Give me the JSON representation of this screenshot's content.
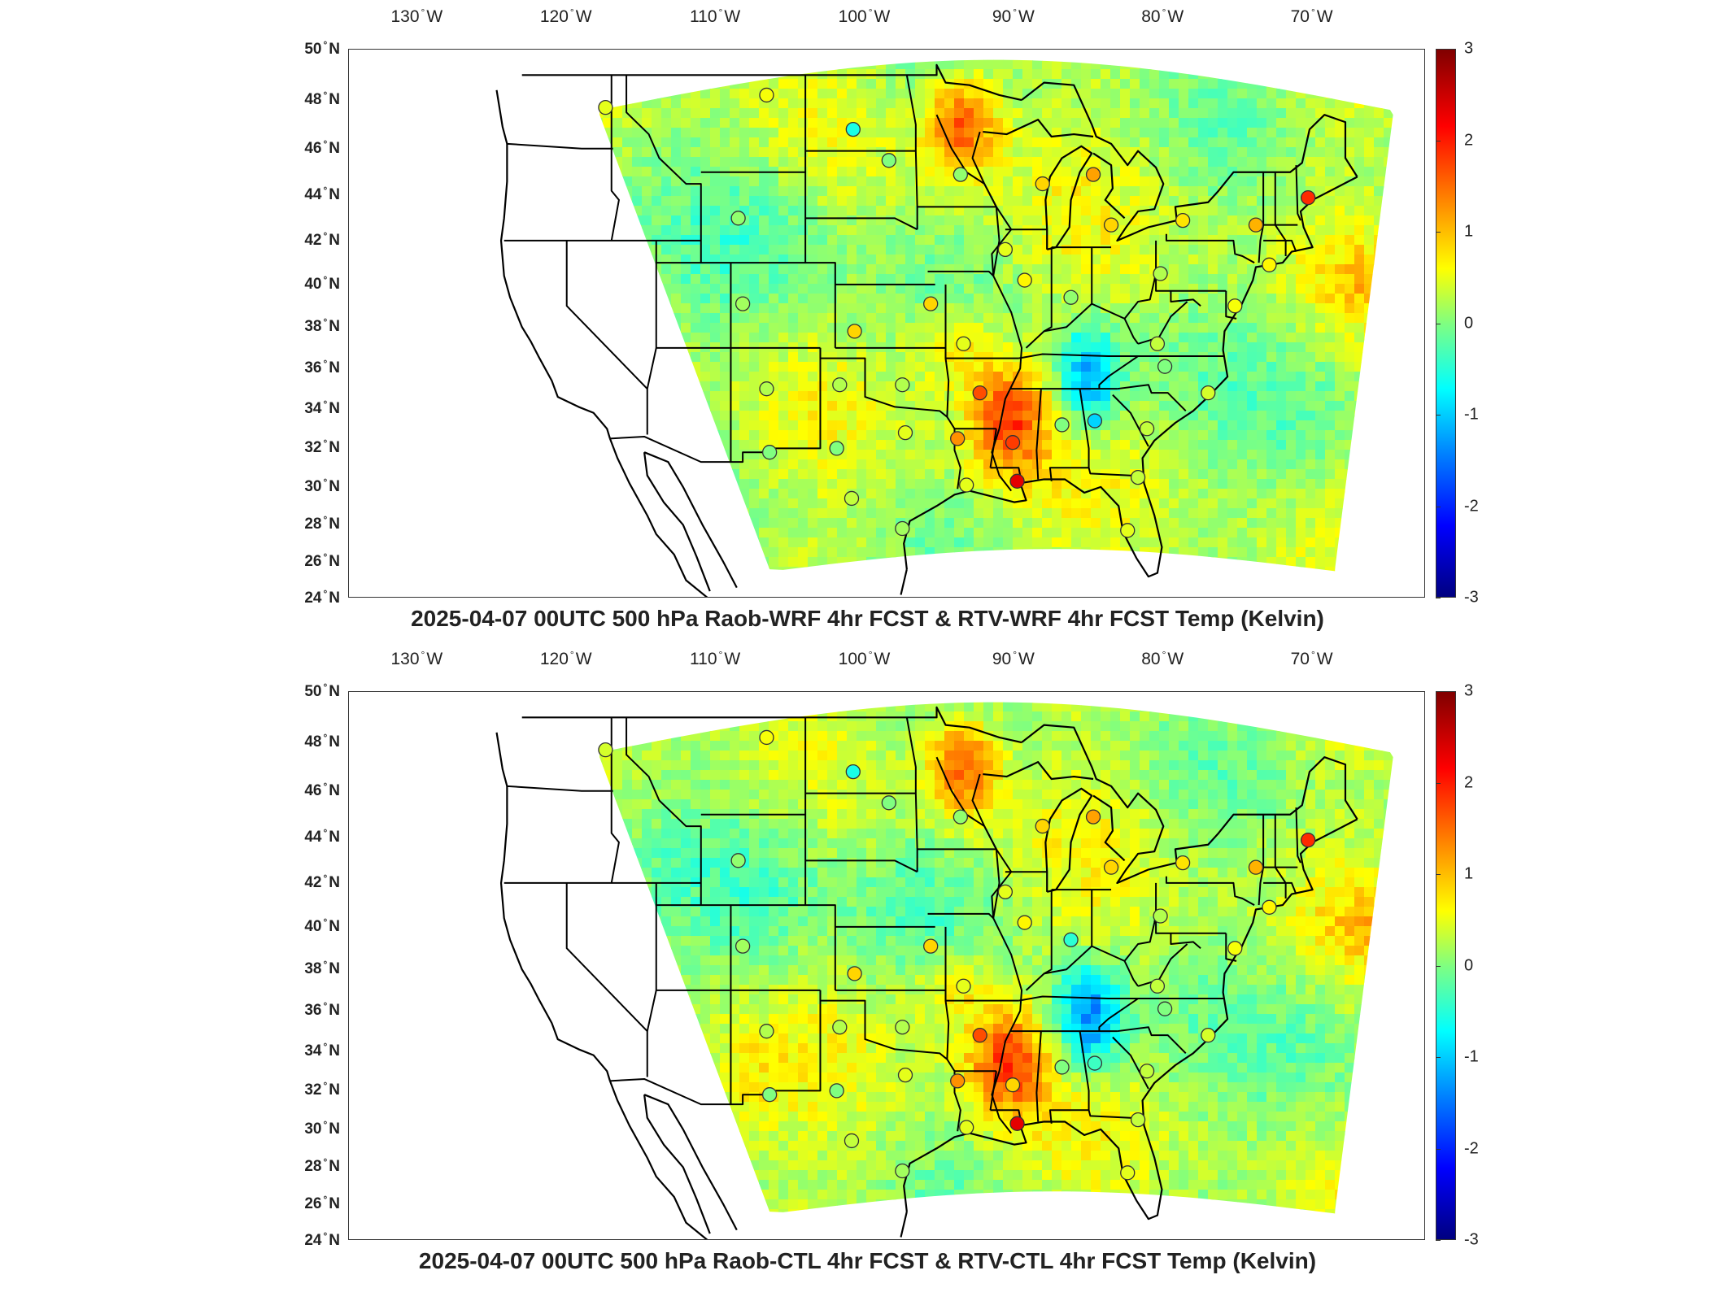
{
  "panels": [
    {
      "id": "top",
      "title": "2025-04-07 00UTC 500 hPa Raob-WRF 4hr FCST & RTV-WRF 4hr FCST Temp (Kelvin)"
    },
    {
      "id": "bottom",
      "title": "2025-04-07 00UTC 500 hPa Raob-CTL 4hr FCST & RTV-CTL 4hr FCST Temp (Kelvin)"
    }
  ],
  "lon_ticks": [
    {
      "value": "130",
      "hemi": "W"
    },
    {
      "value": "120",
      "hemi": "W"
    },
    {
      "value": "110",
      "hemi": "W"
    },
    {
      "value": "100",
      "hemi": "W"
    },
    {
      "value": "90",
      "hemi": "W"
    },
    {
      "value": "80",
      "hemi": "W"
    },
    {
      "value": "70",
      "hemi": "W"
    }
  ],
  "lat_ticks": [
    {
      "value": "50",
      "hemi": "N"
    },
    {
      "value": "48",
      "hemi": "N"
    },
    {
      "value": "46",
      "hemi": "N"
    },
    {
      "value": "44",
      "hemi": "N"
    },
    {
      "value": "42",
      "hemi": "N"
    },
    {
      "value": "40",
      "hemi": "N"
    },
    {
      "value": "38",
      "hemi": "N"
    },
    {
      "value": "36",
      "hemi": "N"
    },
    {
      "value": "34",
      "hemi": "N"
    },
    {
      "value": "32",
      "hemi": "N"
    },
    {
      "value": "30",
      "hemi": "N"
    },
    {
      "value": "28",
      "hemi": "N"
    },
    {
      "value": "26",
      "hemi": "N"
    },
    {
      "value": "24",
      "hemi": "N"
    }
  ],
  "colorbar": {
    "ticks": [
      "3",
      "2",
      "1",
      "0",
      "-1",
      "-2",
      "-3"
    ],
    "min": -3,
    "max": 3,
    "colormap": "jet"
  },
  "raob_stations": [
    {
      "lon": -117.4,
      "lat": 47.7,
      "top": 0.6,
      "bottom": 0.5
    },
    {
      "lon": -106.6,
      "lat": 48.2,
      "top": 0.7,
      "bottom": 0.7
    },
    {
      "lon": -100.8,
      "lat": 46.8,
      "top": -0.6,
      "bottom": -0.6
    },
    {
      "lon": -98.4,
      "lat": 45.5,
      "top": 0.0,
      "bottom": 0.0
    },
    {
      "lon": -93.6,
      "lat": 44.9,
      "top": 0.1,
      "bottom": 0.1
    },
    {
      "lon": -88.1,
      "lat": 44.5,
      "top": 1.0,
      "bottom": 1.0
    },
    {
      "lon": -84.7,
      "lat": 44.9,
      "top": 1.3,
      "bottom": 1.3
    },
    {
      "lon": -83.5,
      "lat": 42.7,
      "top": 1.0,
      "bottom": 1.0
    },
    {
      "lon": -78.7,
      "lat": 42.9,
      "top": 0.9,
      "bottom": 0.9
    },
    {
      "lon": -73.8,
      "lat": 42.7,
      "top": 1.2,
      "bottom": 1.2
    },
    {
      "lon": -70.3,
      "lat": 43.9,
      "top": 2.0,
      "bottom": 2.0
    },
    {
      "lon": -108.5,
      "lat": 43.0,
      "top": 0.1,
      "bottom": 0.1
    },
    {
      "lon": -90.6,
      "lat": 41.6,
      "top": 0.6,
      "bottom": 0.6
    },
    {
      "lon": -89.3,
      "lat": 40.2,
      "top": 0.8,
      "bottom": 0.8
    },
    {
      "lon": -86.2,
      "lat": 39.4,
      "top": 0.1,
      "bottom": -0.5
    },
    {
      "lon": -80.2,
      "lat": 40.5,
      "top": 0.3,
      "bottom": 0.3
    },
    {
      "lon": -75.2,
      "lat": 39.0,
      "top": 0.7,
      "bottom": 0.7
    },
    {
      "lon": -72.9,
      "lat": 40.9,
      "top": 0.8,
      "bottom": 0.8
    },
    {
      "lon": -108.2,
      "lat": 39.1,
      "top": 0.2,
      "bottom": 0.2
    },
    {
      "lon": -100.7,
      "lat": 37.8,
      "top": 1.0,
      "bottom": 1.0
    },
    {
      "lon": -95.6,
      "lat": 39.1,
      "top": 1.0,
      "bottom": 1.0
    },
    {
      "lon": -93.4,
      "lat": 37.2,
      "top": 0.6,
      "bottom": 0.6
    },
    {
      "lon": -80.4,
      "lat": 37.2,
      "top": 0.4,
      "bottom": 0.4
    },
    {
      "lon": -79.9,
      "lat": 36.1,
      "top": 0.0,
      "bottom": 0.0
    },
    {
      "lon": -106.6,
      "lat": 35.0,
      "top": 0.3,
      "bottom": 0.3
    },
    {
      "lon": -101.7,
      "lat": 35.2,
      "top": 0.3,
      "bottom": 0.3
    },
    {
      "lon": -97.5,
      "lat": 35.2,
      "top": 0.3,
      "bottom": 0.3
    },
    {
      "lon": -92.3,
      "lat": 34.8,
      "top": 1.8,
      "bottom": 1.8
    },
    {
      "lon": -86.8,
      "lat": 33.2,
      "top": 0.0,
      "bottom": 0.0
    },
    {
      "lon": -84.6,
      "lat": 33.4,
      "top": -1.0,
      "bottom": -0.4
    },
    {
      "lon": -81.1,
      "lat": 33.0,
      "top": 0.4,
      "bottom": 0.4
    },
    {
      "lon": -77.0,
      "lat": 34.8,
      "top": 0.5,
      "bottom": 0.5
    },
    {
      "lon": -106.4,
      "lat": 31.8,
      "top": 0.0,
      "bottom": 0.0
    },
    {
      "lon": -101.9,
      "lat": 32.0,
      "top": 0.0,
      "bottom": 0.0
    },
    {
      "lon": -97.3,
      "lat": 32.8,
      "top": 0.6,
      "bottom": 0.6
    },
    {
      "lon": -93.8,
      "lat": 32.5,
      "top": 1.4,
      "bottom": 1.4
    },
    {
      "lon": -90.1,
      "lat": 32.3,
      "top": 1.9,
      "bottom": 1.0
    },
    {
      "lon": -89.8,
      "lat": 30.3,
      "top": 2.4,
      "bottom": 2.4
    },
    {
      "lon": -93.2,
      "lat": 30.1,
      "top": 0.6,
      "bottom": 0.6
    },
    {
      "lon": -100.9,
      "lat": 29.4,
      "top": 0.4,
      "bottom": 0.4
    },
    {
      "lon": -97.5,
      "lat": 27.8,
      "top": 0.2,
      "bottom": 0.2
    },
    {
      "lon": -82.4,
      "lat": 27.7,
      "top": 0.6,
      "bottom": 0.6
    },
    {
      "lon": -81.7,
      "lat": 30.5,
      "top": 0.4,
      "bottom": 0.4
    }
  ]
}
